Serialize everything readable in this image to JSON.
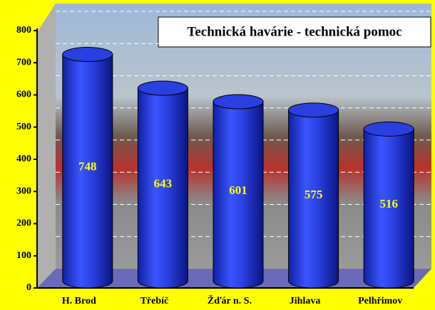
{
  "chart_data": {
    "type": "bar",
    "title": "Technická havárie - technická pomoc",
    "categories": [
      "H. Brod",
      "Třebíč",
      "Žďár n. S.",
      "Jihlava",
      "Pelhřimov"
    ],
    "values": [
      748,
      643,
      601,
      575,
      516
    ],
    "color": "#2a3fe0",
    "ylim": [
      0,
      800
    ],
    "yticks": [
      0,
      100,
      200,
      300,
      400,
      500,
      600,
      700,
      800
    ],
    "grid": true
  }
}
